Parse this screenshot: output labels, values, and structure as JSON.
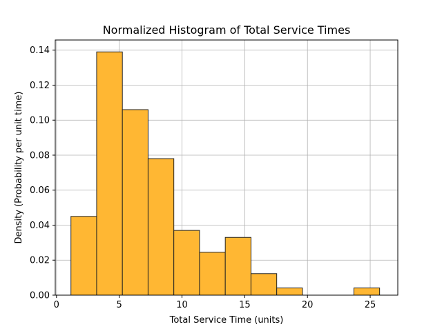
{
  "chart_data": {
    "type": "bar",
    "title": "Normalized Histogram of Total Service Times",
    "xlabel": "Total Service Time (units)",
    "ylabel": "Density (Probability per unit time)",
    "xlim": [
      -0.1,
      27.2
    ],
    "ylim": [
      0,
      0.1458
    ],
    "x_ticks": [
      0,
      5,
      10,
      15,
      20,
      25
    ],
    "y_ticks": [
      0.0,
      0.02,
      0.04,
      0.06,
      0.08,
      0.1,
      0.12,
      0.14
    ],
    "x_tick_labels": [
      "0",
      "5",
      "10",
      "15",
      "20",
      "25"
    ],
    "y_tick_labels": [
      "0.00",
      "0.02",
      "0.04",
      "0.06",
      "0.08",
      "0.10",
      "0.12",
      "0.14"
    ],
    "grid": true,
    "bin_edges": [
      1.15,
      3.2,
      5.25,
      7.3,
      9.35,
      11.4,
      13.45,
      15.5,
      17.55,
      19.6,
      21.65,
      23.7,
      25.75
    ],
    "bins": [
      {
        "x0": 1.15,
        "x1": 3.2,
        "value": 0.045
      },
      {
        "x0": 3.2,
        "x1": 5.25,
        "value": 0.139
      },
      {
        "x0": 5.25,
        "x1": 7.3,
        "value": 0.106
      },
      {
        "x0": 7.3,
        "x1": 9.35,
        "value": 0.078
      },
      {
        "x0": 9.35,
        "x1": 11.4,
        "value": 0.037
      },
      {
        "x0": 11.4,
        "x1": 13.45,
        "value": 0.0245
      },
      {
        "x0": 13.45,
        "x1": 15.5,
        "value": 0.033
      },
      {
        "x0": 15.5,
        "x1": 17.55,
        "value": 0.0123
      },
      {
        "x0": 17.55,
        "x1": 19.6,
        "value": 0.0041
      },
      {
        "x0": 19.6,
        "x1": 21.65,
        "value": 0
      },
      {
        "x0": 21.65,
        "x1": 23.7,
        "value": 0
      },
      {
        "x0": 23.7,
        "x1": 25.75,
        "value": 0.0041
      }
    ],
    "colors": {
      "bar_fill": "#ffb733",
      "bar_edge": "#222222",
      "grid": "#b0b0b0",
      "axis": "#000000"
    }
  }
}
